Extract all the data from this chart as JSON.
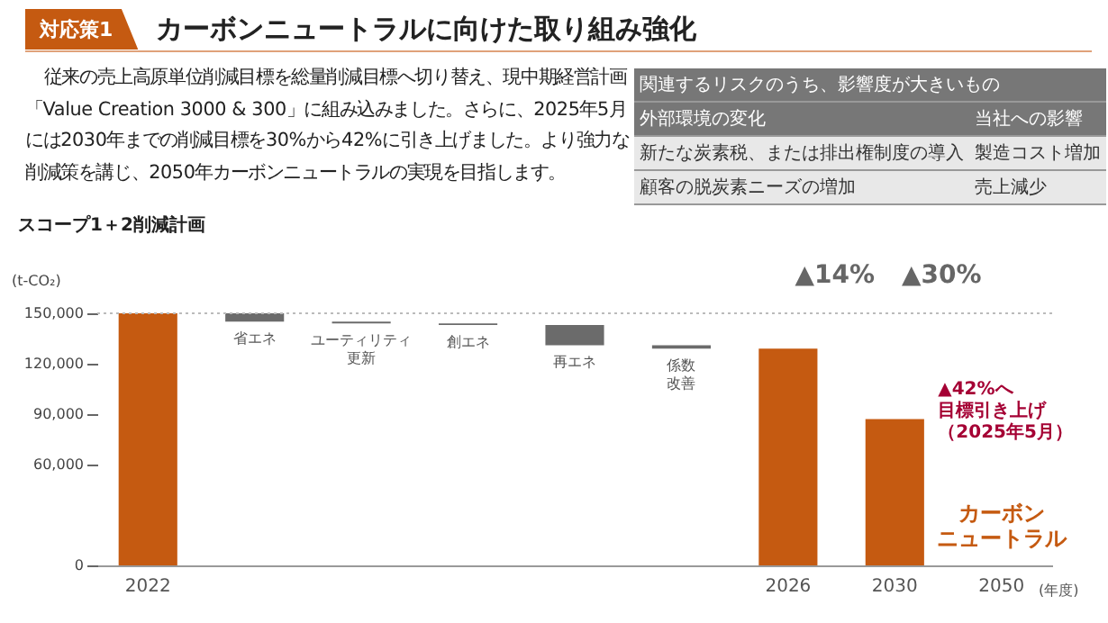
{
  "chart_data": {
    "type": "bar",
    "title": "カーボンニュートラルに向けた取り組み強化",
    "subtitle": "スコープ1＋2削減計画",
    "ylabel": "(t-CO₂)",
    "xlabel": "(年度)",
    "categories": [
      "2022",
      "省エネ",
      "ユーティリティ更新",
      "創エネ",
      "再エネ",
      "係数改善",
      "2026",
      "2030",
      "2050"
    ],
    "values": [
      150000,
      -5000,
      -1000,
      -1000,
      -12000,
      -2000,
      129000,
      87000,
      null
    ],
    "base": [
      0,
      150000,
      145000,
      144000,
      143000,
      131000,
      0,
      0,
      null
    ],
    "colors": [
      "#c55a11",
      "#6b6b6b",
      "#6b6b6b",
      "#6b6b6b",
      "#6b6b6b",
      "#6b6b6b",
      "#c55a11",
      "#c55a11",
      "#c55a11"
    ],
    "ylim": [
      0,
      150000
    ],
    "yticks": [
      {
        "value": 0,
        "label": "0"
      },
      {
        "value": 60000,
        "label": "60,000"
      },
      {
        "value": 90000,
        "label": "90,000"
      },
      {
        "value": 120000,
        "label": "120,000"
      },
      {
        "value": 150000,
        "label": "150,000"
      }
    ],
    "ref_lines": [
      {
        "axis": "y",
        "value": 150000,
        "color": "#bbbbbb",
        "line_style": "dotted"
      }
    ],
    "annotations": [
      "対応策1",
      "従来の売上高原単位削減目標を総量削減目標へ切り替え、現中期経営計画「Value Creation 3000 & 300」に組み込みました。さらに、2025年5月には2030年までの削減目標を30%から42%に引き上げました。より強力な削減策を講じ、2050年カーボンニュートラルの実現を目指します。",
      "関連するリスクのうち、影響度が大きいもの",
      "外部環境の変化",
      "当社への影響",
      "新たな炭素税、または排出権制度の導入",
      "製造コスト増加",
      "顧客の脱炭素ニーズの増加",
      "売上減少",
      {
        "text": "▲14%",
        "x": "2026",
        "y": 150000
      },
      {
        "text": "▲30%",
        "x": "2030",
        "y": 150000
      },
      {
        "text": "▲42%へ目標引き上げ（2025年5月）",
        "x": "2030",
        "y": 87000
      },
      "カーボンニュートラル"
    ]
  }
}
